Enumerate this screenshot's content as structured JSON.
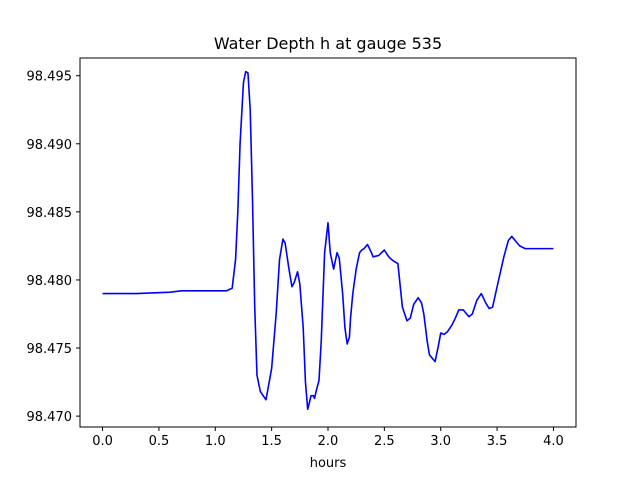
{
  "chart_data": {
    "type": "line",
    "title": "Water Depth h at gauge 535",
    "xlabel": "hours",
    "ylabel": "",
    "xlim": [
      -0.2,
      4.2
    ],
    "ylim": [
      98.4692,
      98.4963
    ],
    "xticks": [
      0.0,
      0.5,
      1.0,
      1.5,
      2.0,
      2.5,
      3.0,
      3.5,
      4.0
    ],
    "xtick_labels": [
      "0.0",
      "0.5",
      "1.0",
      "1.5",
      "2.0",
      "2.5",
      "3.0",
      "3.5",
      "4.0"
    ],
    "yticks": [
      98.47,
      98.475,
      98.48,
      98.485,
      98.49,
      98.495
    ],
    "ytick_labels": [
      "98.470",
      "98.475",
      "98.480",
      "98.485",
      "98.490",
      "98.495"
    ],
    "grid": false,
    "series": [
      {
        "color": "#0000ff",
        "x": [
          0.0,
          0.3,
          0.6,
          0.7,
          1.0,
          1.1,
          1.15,
          1.18,
          1.2,
          1.22,
          1.25,
          1.27,
          1.29,
          1.31,
          1.33,
          1.35,
          1.37,
          1.4,
          1.45,
          1.5,
          1.54,
          1.57,
          1.6,
          1.62,
          1.65,
          1.68,
          1.7,
          1.73,
          1.75,
          1.78,
          1.8,
          1.82,
          1.85,
          1.87,
          1.88,
          1.9,
          1.92,
          1.94,
          1.97,
          2.0,
          2.02,
          2.05,
          2.08,
          2.1,
          2.13,
          2.15,
          2.17,
          2.19,
          2.2,
          2.22,
          2.25,
          2.28,
          2.3,
          2.32,
          2.35,
          2.38,
          2.4,
          2.45,
          2.5,
          2.53,
          2.55,
          2.58,
          2.62,
          2.66,
          2.7,
          2.73,
          2.76,
          2.8,
          2.83,
          2.85,
          2.88,
          2.9,
          2.92,
          2.95,
          2.98,
          3.0,
          3.03,
          3.06,
          3.1,
          3.13,
          3.16,
          3.2,
          3.25,
          3.28,
          3.32,
          3.36,
          3.4,
          3.43,
          3.46,
          3.5,
          3.53,
          3.56,
          3.6,
          3.63,
          3.66,
          3.7,
          3.75,
          3.8,
          3.85,
          3.9,
          3.95,
          4.0
        ],
        "y": [
          98.479,
          98.479,
          98.4791,
          98.4792,
          98.4792,
          98.4792,
          98.4794,
          98.4815,
          98.485,
          98.49,
          98.4945,
          98.4953,
          98.4952,
          98.4925,
          98.486,
          98.478,
          98.473,
          98.4718,
          98.4712,
          98.4735,
          98.4775,
          98.4815,
          98.483,
          98.4827,
          98.481,
          98.4795,
          98.4798,
          98.4806,
          98.4797,
          98.4765,
          98.4725,
          98.4705,
          98.4715,
          98.4715,
          98.4713,
          98.472,
          98.4726,
          98.4755,
          98.482,
          98.4842,
          98.482,
          98.4808,
          98.482,
          98.4816,
          98.479,
          98.4765,
          98.4753,
          98.4758,
          98.4772,
          98.479,
          98.4808,
          98.482,
          98.4822,
          98.4823,
          98.4826,
          98.4821,
          98.4817,
          98.4818,
          98.4822,
          98.4818,
          98.4816,
          98.4814,
          98.4812,
          98.478,
          98.477,
          98.4772,
          98.4782,
          98.4787,
          98.4783,
          98.4775,
          98.4755,
          98.4745,
          98.4743,
          98.474,
          98.4752,
          98.4761,
          98.476,
          98.4762,
          98.4767,
          98.4772,
          98.4778,
          98.4778,
          98.4773,
          98.4775,
          98.4785,
          98.479,
          98.4783,
          98.4779,
          98.478,
          98.4795,
          98.4806,
          98.4817,
          98.4829,
          98.4832,
          98.4829,
          98.4825,
          98.4823,
          98.4823,
          98.4823,
          98.4823,
          98.4823,
          98.4823
        ]
      }
    ]
  }
}
